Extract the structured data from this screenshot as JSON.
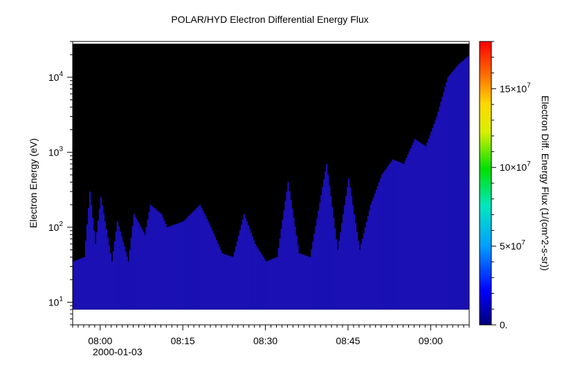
{
  "title": "POLAR/HYD  Electron Differential Energy Flux",
  "chart_data": {
    "type": "heatmap",
    "title": "POLAR/HYD  Electron Differential Energy Flux",
    "ylabel": "Electron Energy (eV)",
    "yscale": "log",
    "y_ticks": [
      {
        "value": 10,
        "base": "10",
        "exp": "1"
      },
      {
        "value": 100,
        "base": "10",
        "exp": "2"
      },
      {
        "value": 1000,
        "base": "10",
        "exp": "3"
      },
      {
        "value": 10000,
        "base": "10",
        "exp": "4"
      }
    ],
    "x_ticks": [
      "08:00",
      "08:15",
      "08:30",
      "08:45",
      "09:00"
    ],
    "x_date_label": "2000-01-03",
    "x_range": [
      "07:55",
      "09:07"
    ],
    "y_range_ev": [
      5,
      30000
    ],
    "data_extent_ev": [
      8,
      28000
    ],
    "colorbar": {
      "label": "Electron Diff. Energy Flux (1/(cm^2-s-sr))",
      "range": [
        0,
        180000000
      ],
      "ticks": [
        {
          "value": 0,
          "label": "0."
        },
        {
          "value": 50000000,
          "base": "5×10",
          "exp": "7"
        },
        {
          "value": 100000000,
          "base": "10×10",
          "exp": "7"
        },
        {
          "value": 150000000,
          "base": "15×10",
          "exp": "7"
        }
      ]
    },
    "background_fill": "#000000",
    "low_energy_band_color": "#1a10b4",
    "flux_columns_note": "approximate upper energy bound (eV) of the blue flux region vs time",
    "flux_upper_bound": [
      {
        "t": "07:55",
        "ev": 35
      },
      {
        "t": "07:57",
        "ev": 40
      },
      {
        "t": "07:58",
        "ev": 300
      },
      {
        "t": "07:59",
        "ev": 60
      },
      {
        "t": "08:00",
        "ev": 250
      },
      {
        "t": "08:02",
        "ev": 35
      },
      {
        "t": "08:03",
        "ev": 120
      },
      {
        "t": "08:05",
        "ev": 35
      },
      {
        "t": "08:06",
        "ev": 150
      },
      {
        "t": "08:08",
        "ev": 80
      },
      {
        "t": "08:09",
        "ev": 200
      },
      {
        "t": "08:11",
        "ev": 150
      },
      {
        "t": "08:12",
        "ev": 100
      },
      {
        "t": "08:15",
        "ev": 120
      },
      {
        "t": "08:18",
        "ev": 200
      },
      {
        "t": "08:20",
        "ev": 100
      },
      {
        "t": "08:22",
        "ev": 45
      },
      {
        "t": "08:24",
        "ev": 40
      },
      {
        "t": "08:26",
        "ev": 150
      },
      {
        "t": "08:28",
        "ev": 60
      },
      {
        "t": "08:30",
        "ev": 35
      },
      {
        "t": "08:32",
        "ev": 40
      },
      {
        "t": "08:34",
        "ev": 400
      },
      {
        "t": "08:36",
        "ev": 45
      },
      {
        "t": "08:38",
        "ev": 40
      },
      {
        "t": "08:41",
        "ev": 700
      },
      {
        "t": "08:43",
        "ev": 50
      },
      {
        "t": "08:45",
        "ev": 450
      },
      {
        "t": "08:47",
        "ev": 50
      },
      {
        "t": "08:49",
        "ev": 200
      },
      {
        "t": "08:51",
        "ev": 500
      },
      {
        "t": "08:53",
        "ev": 800
      },
      {
        "t": "08:55",
        "ev": 700
      },
      {
        "t": "08:57",
        "ev": 1500
      },
      {
        "t": "08:59",
        "ev": 1200
      },
      {
        "t": "09:01",
        "ev": 3000
      },
      {
        "t": "09:03",
        "ev": 10000
      },
      {
        "t": "09:05",
        "ev": 15000
      },
      {
        "t": "09:07",
        "ev": 20000
      }
    ]
  }
}
